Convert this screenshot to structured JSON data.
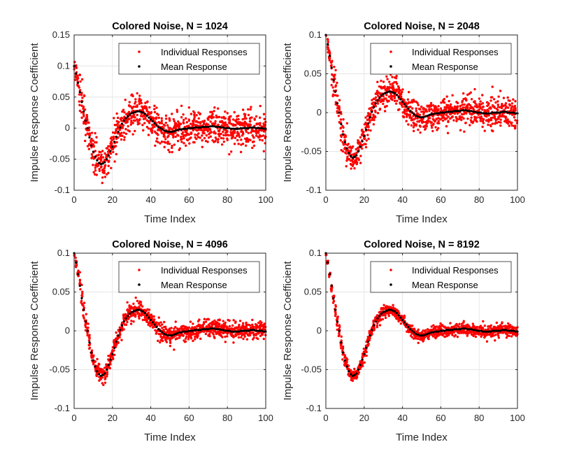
{
  "colors": {
    "individual": "#ff0000",
    "mean": "#000000",
    "grid": "#e6e6e6",
    "axis": "#262626"
  },
  "chart_data": [
    {
      "type": "scatter",
      "title": "Colored Noise, N = 1024",
      "xlabel": "Time Index",
      "ylabel": "Impulse Response Coefficient",
      "xlim": [
        0,
        100
      ],
      "ylim": [
        -0.1,
        0.15
      ],
      "xticks": [
        0,
        20,
        40,
        60,
        80,
        100
      ],
      "yticks": [
        -0.1,
        -0.05,
        0,
        0.05,
        0.1,
        0.15
      ],
      "ytick_labels": [
        "-0.1",
        "-0.05",
        "0",
        "0.05",
        "0.1",
        "0.15"
      ],
      "grid": true,
      "legend": {
        "position": "top-right",
        "entries": [
          "Individual Responses",
          "Mean Response"
        ]
      },
      "mean_response": {
        "x": [
          0,
          1,
          2,
          3,
          4,
          5,
          6,
          7,
          8,
          9,
          10,
          11,
          12,
          13,
          14,
          15,
          16,
          17,
          18,
          19,
          20,
          21,
          22,
          23,
          24,
          25,
          26,
          27,
          28,
          29,
          30,
          31,
          32,
          33,
          34,
          35,
          36,
          37,
          38,
          39,
          40,
          41,
          42,
          43,
          44,
          45,
          46,
          47,
          48,
          49,
          50,
          51,
          52,
          53,
          54,
          55,
          56,
          57,
          58,
          59,
          60,
          61,
          62,
          63,
          64,
          65,
          66,
          67,
          68,
          69,
          70,
          71,
          72,
          73,
          74,
          75,
          76,
          77,
          78,
          79,
          80,
          81,
          82,
          83,
          84,
          85,
          86,
          87,
          88,
          89,
          90,
          91,
          92,
          93,
          94,
          95,
          96,
          97,
          98,
          99,
          100
        ],
        "y": [
          0.1,
          0.088,
          0.073,
          0.058,
          0.042,
          0.027,
          0.012,
          0.0,
          -0.015,
          -0.028,
          -0.038,
          -0.046,
          -0.052,
          -0.056,
          -0.058,
          -0.057,
          -0.055,
          -0.05,
          -0.044,
          -0.037,
          -0.03,
          -0.022,
          -0.014,
          -0.006,
          0.001,
          0.007,
          0.012,
          0.016,
          0.019,
          0.022,
          0.024,
          0.025,
          0.026,
          0.027,
          0.027,
          0.026,
          0.025,
          0.023,
          0.02,
          0.017,
          0.014,
          0.011,
          0.008,
          0.005,
          0.002,
          0.0,
          -0.002,
          -0.004,
          -0.005,
          -0.006,
          -0.006,
          -0.006,
          -0.005,
          -0.004,
          -0.003,
          -0.002,
          -0.002,
          -0.001,
          -0.001,
          -0.001,
          0.0,
          0.0,
          0.0,
          0.001,
          0.001,
          0.001,
          0.001,
          0.002,
          0.002,
          0.002,
          0.002,
          0.003,
          0.003,
          0.003,
          0.002,
          0.002,
          0.002,
          0.001,
          0.001,
          0.0,
          0.0,
          0.0,
          -0.001,
          -0.001,
          -0.001,
          -0.001,
          -0.001,
          0.0,
          0.0,
          0.0,
          0.0,
          0.0,
          0.001,
          0.001,
          0.001,
          0.0,
          0.0,
          0.0,
          0.0,
          -0.001,
          -0.001
        ]
      },
      "individual_spread": 0.014
    },
    {
      "type": "scatter",
      "title": "Colored Noise, N = 2048",
      "xlabel": "Time Index",
      "ylabel": "Impulse Response Coefficient",
      "xlim": [
        0,
        100
      ],
      "ylim": [
        -0.1,
        0.1
      ],
      "xticks": [
        0,
        20,
        40,
        60,
        80,
        100
      ],
      "yticks": [
        -0.1,
        -0.05,
        0,
        0.05,
        0.1
      ],
      "ytick_labels": [
        "-0.1",
        "-0.05",
        "0",
        "0.05",
        "0.1"
      ],
      "grid": true,
      "legend": {
        "position": "top-right",
        "entries": [
          "Individual Responses",
          "Mean Response"
        ]
      },
      "mean_response": {
        "x": [
          0,
          1,
          2,
          3,
          4,
          5,
          6,
          7,
          8,
          9,
          10,
          11,
          12,
          13,
          14,
          15,
          16,
          17,
          18,
          19,
          20,
          21,
          22,
          23,
          24,
          25,
          26,
          27,
          28,
          29,
          30,
          31,
          32,
          33,
          34,
          35,
          36,
          37,
          38,
          39,
          40,
          41,
          42,
          43,
          44,
          45,
          46,
          47,
          48,
          49,
          50,
          51,
          52,
          53,
          54,
          55,
          56,
          57,
          58,
          59,
          60,
          61,
          62,
          63,
          64,
          65,
          66,
          67,
          68,
          69,
          70,
          71,
          72,
          73,
          74,
          75,
          76,
          77,
          78,
          79,
          80,
          81,
          82,
          83,
          84,
          85,
          86,
          87,
          88,
          89,
          90,
          91,
          92,
          93,
          94,
          95,
          96,
          97,
          98,
          99,
          100
        ],
        "y": [
          0.1,
          0.088,
          0.073,
          0.058,
          0.042,
          0.027,
          0.012,
          0.0,
          -0.015,
          -0.028,
          -0.038,
          -0.046,
          -0.052,
          -0.056,
          -0.058,
          -0.057,
          -0.055,
          -0.05,
          -0.044,
          -0.037,
          -0.03,
          -0.022,
          -0.014,
          -0.006,
          0.001,
          0.007,
          0.012,
          0.016,
          0.019,
          0.022,
          0.024,
          0.025,
          0.026,
          0.027,
          0.027,
          0.026,
          0.025,
          0.023,
          0.02,
          0.017,
          0.014,
          0.011,
          0.008,
          0.005,
          0.002,
          0.0,
          -0.002,
          -0.004,
          -0.005,
          -0.006,
          -0.006,
          -0.006,
          -0.005,
          -0.004,
          -0.003,
          -0.002,
          -0.002,
          -0.001,
          -0.001,
          -0.001,
          0.0,
          0.0,
          0.0,
          0.001,
          0.001,
          0.001,
          0.001,
          0.002,
          0.002,
          0.002,
          0.002,
          0.003,
          0.003,
          0.003,
          0.002,
          0.002,
          0.002,
          0.001,
          0.001,
          0.0,
          0.0,
          0.0,
          -0.001,
          -0.001,
          -0.001,
          -0.001,
          -0.001,
          0.0,
          0.0,
          0.0,
          0.0,
          0.0,
          0.001,
          0.001,
          0.001,
          0.0,
          0.0,
          0.0,
          0.0,
          -0.001,
          -0.001
        ]
      },
      "individual_spread": 0.01
    },
    {
      "type": "scatter",
      "title": "Colored Noise, N = 4096",
      "xlabel": "Time Index",
      "ylabel": "Impulse Response Coefficient",
      "xlim": [
        0,
        100
      ],
      "ylim": [
        -0.1,
        0.1
      ],
      "xticks": [
        0,
        20,
        40,
        60,
        80,
        100
      ],
      "yticks": [
        -0.1,
        -0.05,
        0,
        0.05,
        0.1
      ],
      "ytick_labels": [
        "-0.1",
        "-0.05",
        "0",
        "0.05",
        "0.1"
      ],
      "grid": true,
      "legend": {
        "position": "top-right",
        "entries": [
          "Individual Responses",
          "Mean Response"
        ]
      },
      "mean_response": {
        "x": [
          0,
          1,
          2,
          3,
          4,
          5,
          6,
          7,
          8,
          9,
          10,
          11,
          12,
          13,
          14,
          15,
          16,
          17,
          18,
          19,
          20,
          21,
          22,
          23,
          24,
          25,
          26,
          27,
          28,
          29,
          30,
          31,
          32,
          33,
          34,
          35,
          36,
          37,
          38,
          39,
          40,
          41,
          42,
          43,
          44,
          45,
          46,
          47,
          48,
          49,
          50,
          51,
          52,
          53,
          54,
          55,
          56,
          57,
          58,
          59,
          60,
          61,
          62,
          63,
          64,
          65,
          66,
          67,
          68,
          69,
          70,
          71,
          72,
          73,
          74,
          75,
          76,
          77,
          78,
          79,
          80,
          81,
          82,
          83,
          84,
          85,
          86,
          87,
          88,
          89,
          90,
          91,
          92,
          93,
          94,
          95,
          96,
          97,
          98,
          99,
          100
        ],
        "y": [
          0.1,
          0.088,
          0.073,
          0.058,
          0.042,
          0.027,
          0.012,
          0.0,
          -0.015,
          -0.028,
          -0.038,
          -0.046,
          -0.052,
          -0.056,
          -0.058,
          -0.057,
          -0.055,
          -0.05,
          -0.044,
          -0.037,
          -0.03,
          -0.022,
          -0.014,
          -0.006,
          0.001,
          0.007,
          0.012,
          0.016,
          0.019,
          0.022,
          0.024,
          0.025,
          0.026,
          0.027,
          0.027,
          0.026,
          0.025,
          0.023,
          0.02,
          0.017,
          0.014,
          0.011,
          0.008,
          0.005,
          0.002,
          0.0,
          -0.002,
          -0.004,
          -0.005,
          -0.006,
          -0.006,
          -0.006,
          -0.005,
          -0.004,
          -0.003,
          -0.002,
          -0.002,
          -0.001,
          -0.001,
          -0.001,
          0.0,
          0.0,
          0.0,
          0.001,
          0.001,
          0.001,
          0.001,
          0.002,
          0.002,
          0.002,
          0.002,
          0.003,
          0.003,
          0.003,
          0.002,
          0.002,
          0.002,
          0.001,
          0.001,
          0.0,
          0.0,
          0.0,
          -0.001,
          -0.001,
          -0.001,
          -0.001,
          -0.001,
          0.0,
          0.0,
          0.0,
          0.0,
          0.0,
          0.001,
          0.001,
          0.001,
          0.0,
          0.0,
          0.0,
          0.0,
          -0.001,
          -0.001
        ]
      },
      "individual_spread": 0.006
    },
    {
      "type": "scatter",
      "title": "Colored Noise, N = 8192",
      "xlabel": "Time Index",
      "ylabel": "Impulse Response Coefficient",
      "xlim": [
        0,
        100
      ],
      "ylim": [
        -0.1,
        0.1
      ],
      "xticks": [
        0,
        20,
        40,
        60,
        80,
        100
      ],
      "yticks": [
        -0.1,
        -0.05,
        0,
        0.05,
        0.1
      ],
      "ytick_labels": [
        "-0.1",
        "-0.05",
        "0",
        "0.05",
        "0.1"
      ],
      "grid": true,
      "legend": {
        "position": "top-right",
        "entries": [
          "Individual Responses",
          "Mean Response"
        ]
      },
      "mean_response": {
        "x": [
          0,
          1,
          2,
          3,
          4,
          5,
          6,
          7,
          8,
          9,
          10,
          11,
          12,
          13,
          14,
          15,
          16,
          17,
          18,
          19,
          20,
          21,
          22,
          23,
          24,
          25,
          26,
          27,
          28,
          29,
          30,
          31,
          32,
          33,
          34,
          35,
          36,
          37,
          38,
          39,
          40,
          41,
          42,
          43,
          44,
          45,
          46,
          47,
          48,
          49,
          50,
          51,
          52,
          53,
          54,
          55,
          56,
          57,
          58,
          59,
          60,
          61,
          62,
          63,
          64,
          65,
          66,
          67,
          68,
          69,
          70,
          71,
          72,
          73,
          74,
          75,
          76,
          77,
          78,
          79,
          80,
          81,
          82,
          83,
          84,
          85,
          86,
          87,
          88,
          89,
          90,
          91,
          92,
          93,
          94,
          95,
          96,
          97,
          98,
          99,
          100
        ],
        "y": [
          0.1,
          0.088,
          0.073,
          0.058,
          0.042,
          0.027,
          0.012,
          0.0,
          -0.015,
          -0.028,
          -0.038,
          -0.046,
          -0.052,
          -0.056,
          -0.058,
          -0.057,
          -0.055,
          -0.05,
          -0.044,
          -0.037,
          -0.03,
          -0.022,
          -0.014,
          -0.006,
          0.001,
          0.007,
          0.012,
          0.016,
          0.019,
          0.022,
          0.024,
          0.025,
          0.026,
          0.027,
          0.027,
          0.026,
          0.025,
          0.023,
          0.02,
          0.017,
          0.014,
          0.011,
          0.008,
          0.005,
          0.002,
          0.0,
          -0.002,
          -0.004,
          -0.005,
          -0.006,
          -0.006,
          -0.006,
          -0.005,
          -0.004,
          -0.003,
          -0.002,
          -0.002,
          -0.001,
          -0.001,
          -0.001,
          0.0,
          0.0,
          0.0,
          0.001,
          0.001,
          0.001,
          0.001,
          0.002,
          0.002,
          0.002,
          0.002,
          0.003,
          0.003,
          0.003,
          0.002,
          0.002,
          0.002,
          0.001,
          0.001,
          0.0,
          0.0,
          0.0,
          -0.001,
          -0.001,
          -0.001,
          -0.001,
          -0.001,
          0.0,
          0.0,
          0.0,
          0.0,
          0.0,
          0.001,
          0.001,
          0.001,
          0.0,
          0.0,
          0.0,
          0.0,
          -0.001,
          -0.001
        ]
      },
      "individual_spread": 0.004
    }
  ]
}
